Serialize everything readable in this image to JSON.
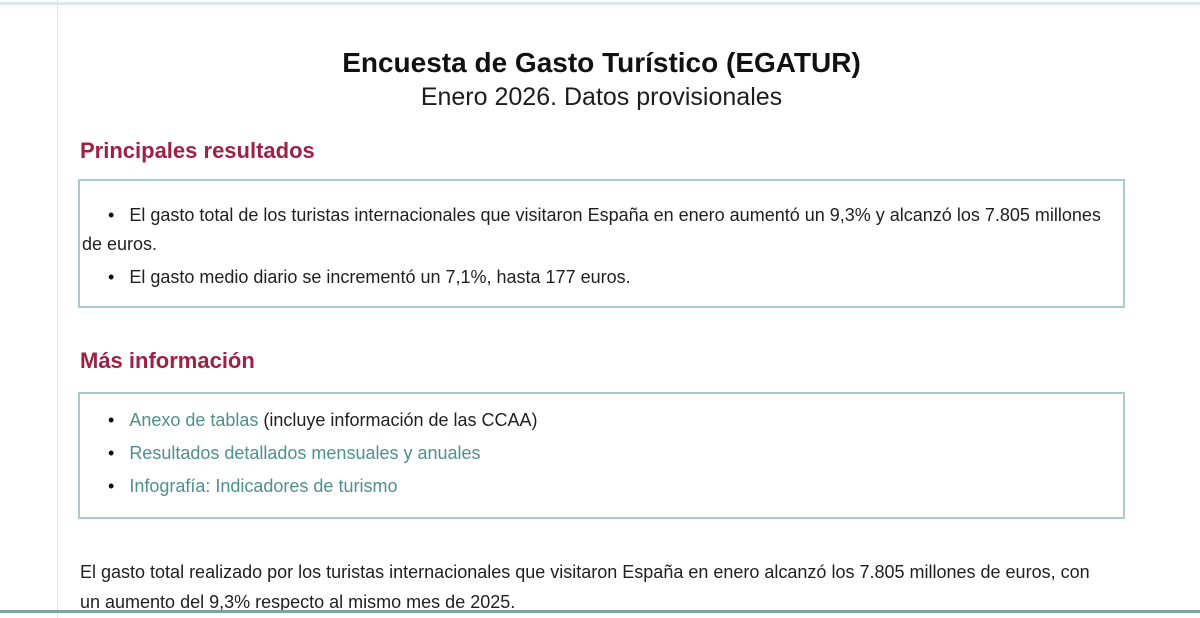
{
  "page": {
    "title": "Encuesta de Gasto Turístico (EGATUR)",
    "subtitle": "Enero 2026. Datos provisionales"
  },
  "sections": {
    "results": {
      "heading": "Principales resultados",
      "bullets": [
        "El gasto total de los turistas internacionales que visitaron España en enero aumentó un 9,3% y alcanzó los 7.805 millones de euros.",
        "El gasto medio diario se incrementó un 7,1%, hasta 177 euros."
      ]
    },
    "more_info": {
      "heading": "Más información",
      "links": [
        {
          "label": "Anexo de tablas",
          "suffix": " (incluye información de las CCAA)"
        },
        {
          "label": "Resultados detallados mensuales y anuales",
          "suffix": ""
        },
        {
          "label": "Infografía: Indicadores de turismo",
          "suffix": ""
        }
      ]
    }
  },
  "closing_paragraph": "El gasto total realizado por los turistas internacionales que visitaron España en enero alcanzó los 7.805 millones de euros, con un aumento del 9,3% respecto al mismo mes de 2025.",
  "glyphs": {
    "bullet": "•"
  },
  "colors": {
    "heading": "#9e2144",
    "link": "#4e908d",
    "box_border": "#a9ccc8",
    "top_rule": "#d9eae8",
    "bottom_rule": "#7ea49f",
    "left_rule": "#e4e7e6",
    "text": "#1f1f1f"
  }
}
